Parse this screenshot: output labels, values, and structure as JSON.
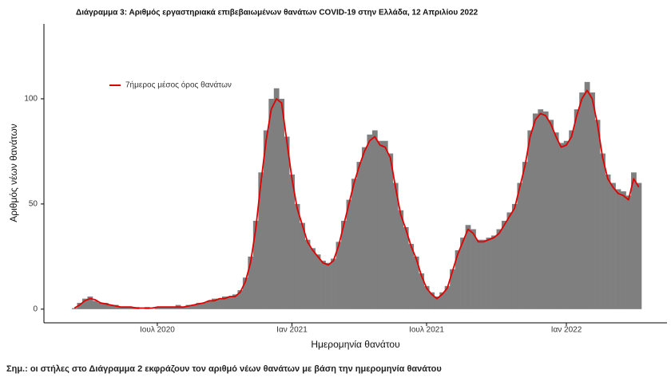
{
  "chart_data": {
    "type": "bar",
    "title": "Διάγραμμα 3: Αριθμός εργαστηριακά επιβεβαιωμένων θανάτων COVID-19 στην Ελλάδα, 12 Απριλίου 2022",
    "x_label": "Ημερομηνία θανάτου",
    "y_label": "Αριθμός νέων θανάτων",
    "note": "Σημ.: οι στήλες στο Διάγραμμα 2 εκφράζουν τον αριθμό νέων θανάτων με βάση την ημερομηνία θανάτου",
    "categories": [
      null,
      null,
      null,
      null,
      null,
      null,
      null,
      null,
      null,
      null,
      null,
      null,
      null,
      null,
      null,
      null,
      "Ιουλ 2020",
      null,
      null,
      null,
      null,
      null,
      null,
      null,
      null,
      null,
      null,
      null,
      null,
      null,
      null,
      null,
      null,
      null,
      null,
      null,
      null,
      null,
      null,
      null,
      null,
      null,
      "Ιαν 2021",
      null,
      null,
      null,
      null,
      null,
      null,
      null,
      null,
      null,
      null,
      null,
      null,
      null,
      null,
      null,
      null,
      null,
      null,
      null,
      null,
      null,
      null,
      null,
      null,
      null,
      "Ιουλ 2021",
      null,
      null,
      null,
      null,
      null,
      null,
      null,
      null,
      null,
      null,
      null,
      null,
      null,
      null,
      null,
      null,
      null,
      null,
      null,
      null,
      null,
      null,
      null,
      null,
      null,
      null,
      "Ιαν 2022",
      null,
      null,
      null,
      null,
      null,
      null,
      null,
      null,
      null,
      null,
      null,
      null,
      null,
      null
    ],
    "series": [
      {
        "type": "bar",
        "color": "#7f7f7f",
        "values": [
          0.5,
          3,
          5,
          6,
          4,
          3,
          3,
          2,
          2,
          1,
          1,
          1,
          1,
          0,
          1,
          0,
          1,
          1,
          1,
          1,
          2,
          1,
          2,
          2,
          3,
          3,
          4,
          5,
          5,
          6,
          6,
          7,
          9,
          15,
          25,
          42,
          65,
          85,
          100,
          105,
          100,
          82,
          64,
          50,
          41,
          33,
          29,
          26,
          23,
          22,
          24,
          32,
          42,
          52,
          62,
          70,
          77,
          83,
          85,
          80,
          80,
          74,
          60,
          47,
          39,
          31,
          25,
          17,
          11,
          8,
          6,
          8,
          11,
          19,
          28,
          34,
          40,
          38,
          33,
          33,
          34,
          35,
          38,
          42,
          46,
          50,
          60,
          70,
          85,
          93,
          95,
          94,
          90,
          84,
          79,
          80,
          85,
          95,
          103,
          108,
          103,
          90,
          74,
          64,
          60,
          57,
          56,
          54,
          65,
          60
        ]
      },
      {
        "type": "line",
        "name": "7ήμερος μέσος όρος θανάτων",
        "color": "#e00000",
        "values": [
          0.5,
          2,
          4,
          5,
          4.5,
          3,
          2.5,
          2,
          1.5,
          1,
          1,
          1,
          0.5,
          0.5,
          0.5,
          0.5,
          1,
          1,
          1,
          1,
          1,
          1,
          1.5,
          2,
          2.5,
          3,
          4,
          4,
          5,
          5,
          6,
          6,
          8,
          13,
          22,
          38,
          60,
          80,
          95,
          100,
          98,
          80,
          62,
          48,
          40,
          32,
          28,
          25,
          22,
          21,
          23,
          30,
          40,
          50,
          60,
          68,
          75,
          80,
          82,
          78,
          77,
          72,
          58,
          45,
          38,
          30,
          24,
          16,
          10,
          7,
          5,
          7,
          10,
          18,
          26,
          32,
          38,
          36,
          32,
          32,
          33,
          34,
          36,
          40,
          44,
          48,
          58,
          68,
          82,
          90,
          93,
          92,
          88,
          82,
          77,
          78,
          82,
          92,
          100,
          104,
          100,
          88,
          72,
          62,
          58,
          55,
          54,
          52,
          62,
          58
        ]
      }
    ],
    "ylim": [
      -6.5,
      135.6
    ],
    "yticks": [
      0,
      50,
      100
    ],
    "legend": "top-left"
  }
}
